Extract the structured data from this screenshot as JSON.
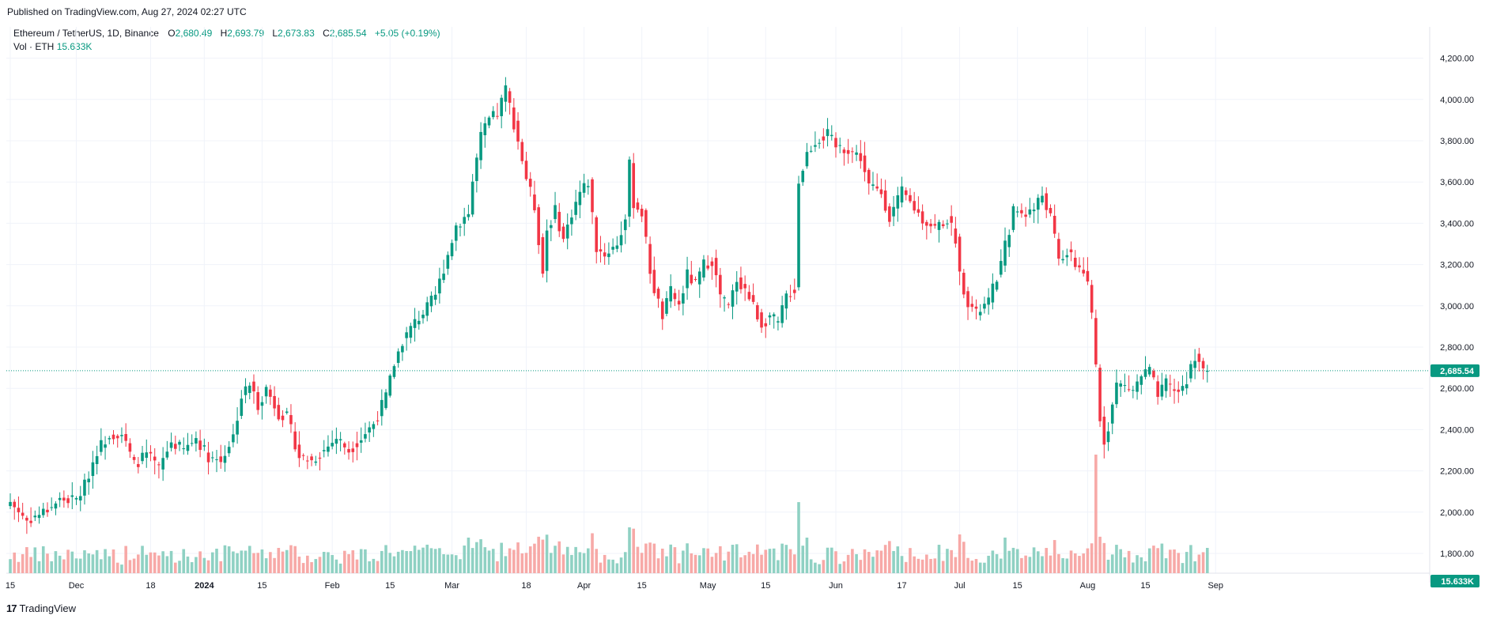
{
  "header": {
    "published": "Published on TradingView.com, Aug 27, 2024 02:27 UTC"
  },
  "legend": {
    "symbol": "Ethereum / TetherUS, 1D, Binance",
    "open_label": "O",
    "open": "2,680.49",
    "high_label": "H",
    "high": "2,693.79",
    "low_label": "L",
    "low": "2,673.83",
    "close_label": "C",
    "close": "2,685.54",
    "change": "+5.05 (+0.19%)",
    "vol_label": "Vol · ETH",
    "vol_value": "15.633K"
  },
  "brand": {
    "logo": "17",
    "name": "TradingView"
  },
  "colors": {
    "up": "#089981",
    "down": "#f23645",
    "up_vol": "#8fd1c3",
    "down_vol": "#f7a9a7",
    "grid": "#f0f3fa",
    "axis_text": "#131722"
  },
  "chart_data": {
    "type": "candlestick",
    "title": "Ethereum / TetherUS, 1D, Binance",
    "ylim": [
      1800,
      4300
    ],
    "y_ticks": [
      "4,200.00",
      "4,000.00",
      "3,800.00",
      "3,600.00",
      "3,400.00",
      "3,200.00",
      "3,000.00",
      "2,800.00",
      "2,600.00",
      "2,400.00",
      "2,200.00",
      "2,000.00",
      "1,800.00"
    ],
    "y_tick_values": [
      4200,
      4000,
      3800,
      3600,
      3400,
      3200,
      3000,
      2800,
      2600,
      2400,
      2200,
      2000,
      1800
    ],
    "x_ticks": [
      {
        "label": "15",
        "day": 0
      },
      {
        "label": "Dec",
        "day": 16
      },
      {
        "label": "18",
        "day": 34
      },
      {
        "label": "2024",
        "day": 47,
        "bold": true
      },
      {
        "label": "15",
        "day": 61
      },
      {
        "label": "Feb",
        "day": 78
      },
      {
        "label": "15",
        "day": 92
      },
      {
        "label": "Mar",
        "day": 107
      },
      {
        "label": "18",
        "day": 125
      },
      {
        "label": "Apr",
        "day": 139
      },
      {
        "label": "15",
        "day": 153
      },
      {
        "label": "May",
        "day": 169
      },
      {
        "label": "15",
        "day": 183
      },
      {
        "label": "Jun",
        "day": 200
      },
      {
        "label": "17",
        "day": 216
      },
      {
        "label": "Jul",
        "day": 230
      },
      {
        "label": "15",
        "day": 244
      },
      {
        "label": "Aug",
        "day": 261
      },
      {
        "label": "15",
        "day": 275
      },
      {
        "label": "Sep",
        "day": 292
      }
    ],
    "last_price": 2685.54,
    "last_price_label": "2,685.54",
    "volume_label": "15.633K",
    "close_anchors": [
      [
        0,
        2050
      ],
      [
        4,
        1960
      ],
      [
        8,
        2000
      ],
      [
        12,
        2060
      ],
      [
        16,
        2060
      ],
      [
        18,
        2130
      ],
      [
        21,
        2300
      ],
      [
        24,
        2380
      ],
      [
        27,
        2380
      ],
      [
        30,
        2230
      ],
      [
        33,
        2280
      ],
      [
        36,
        2210
      ],
      [
        39,
        2340
      ],
      [
        42,
        2300
      ],
      [
        45,
        2360
      ],
      [
        48,
        2270
      ],
      [
        51,
        2250
      ],
      [
        54,
        2370
      ],
      [
        56,
        2560
      ],
      [
        58,
        2620
      ],
      [
        60,
        2520
      ],
      [
        62,
        2600
      ],
      [
        65,
        2480
      ],
      [
        67,
        2460
      ],
      [
        70,
        2270
      ],
      [
        73,
        2250
      ],
      [
        76,
        2300
      ],
      [
        79,
        2360
      ],
      [
        82,
        2300
      ],
      [
        85,
        2360
      ],
      [
        88,
        2430
      ],
      [
        91,
        2560
      ],
      [
        93,
        2720
      ],
      [
        95,
        2830
      ],
      [
        98,
        2920
      ],
      [
        101,
        2990
      ],
      [
        103,
        3050
      ],
      [
        106,
        3250
      ],
      [
        108,
        3390
      ],
      [
        111,
        3450
      ],
      [
        112,
        3600
      ],
      [
        114,
        3820
      ],
      [
        116,
        3900
      ],
      [
        118,
        3930
      ],
      [
        120,
        4050
      ],
      [
        121,
        3970
      ],
      [
        123,
        3800
      ],
      [
        125,
        3620
      ],
      [
        127,
        3480
      ],
      [
        129,
        3160
      ],
      [
        130,
        3370
      ],
      [
        132,
        3460
      ],
      [
        134,
        3320
      ],
      [
        136,
        3450
      ],
      [
        138,
        3550
      ],
      [
        140,
        3600
      ],
      [
        142,
        3280
      ],
      [
        144,
        3250
      ],
      [
        147,
        3300
      ],
      [
        149,
        3420
      ],
      [
        150,
        3680
      ],
      [
        151,
        3500
      ],
      [
        153,
        3450
      ],
      [
        155,
        3170
      ],
      [
        156,
        3080
      ],
      [
        158,
        2950
      ],
      [
        160,
        3070
      ],
      [
        162,
        3000
      ],
      [
        164,
        3150
      ],
      [
        166,
        3100
      ],
      [
        168,
        3200
      ],
      [
        170,
        3220
      ],
      [
        172,
        3050
      ],
      [
        174,
        2990
      ],
      [
        176,
        3130
      ],
      [
        178,
        3080
      ],
      [
        180,
        3000
      ],
      [
        182,
        2910
      ],
      [
        184,
        2950
      ],
      [
        186,
        2910
      ],
      [
        188,
        3050
      ],
      [
        190,
        3080
      ],
      [
        191,
        3600
      ],
      [
        193,
        3740
      ],
      [
        195,
        3800
      ],
      [
        198,
        3830
      ],
      [
        200,
        3770
      ],
      [
        203,
        3760
      ],
      [
        206,
        3720
      ],
      [
        208,
        3580
      ],
      [
        211,
        3550
      ],
      [
        213,
        3430
      ],
      [
        216,
        3550
      ],
      [
        218,
        3500
      ],
      [
        221,
        3420
      ],
      [
        224,
        3380
      ],
      [
        227,
        3420
      ],
      [
        229,
        3330
      ],
      [
        230,
        3150
      ],
      [
        232,
        3020
      ],
      [
        234,
        2960
      ],
      [
        237,
        3020
      ],
      [
        240,
        3200
      ],
      [
        243,
        3460
      ],
      [
        246,
        3450
      ],
      [
        248,
        3470
      ],
      [
        250,
        3540
      ],
      [
        252,
        3430
      ],
      [
        254,
        3220
      ],
      [
        256,
        3260
      ],
      [
        258,
        3200
      ],
      [
        260,
        3170
      ],
      [
        261,
        3090
      ],
      [
        262,
        2950
      ],
      [
        263,
        2710
      ],
      [
        264,
        2450
      ],
      [
        265,
        2350
      ],
      [
        266,
        2420
      ],
      [
        268,
        2620
      ],
      [
        270,
        2610
      ],
      [
        272,
        2590
      ],
      [
        274,
        2660
      ],
      [
        276,
        2690
      ],
      [
        278,
        2560
      ],
      [
        280,
        2620
      ],
      [
        283,
        2580
      ],
      [
        285,
        2640
      ],
      [
        287,
        2760
      ],
      [
        288,
        2740
      ],
      [
        289,
        2680
      ],
      [
        290,
        2685.54
      ]
    ]
  }
}
